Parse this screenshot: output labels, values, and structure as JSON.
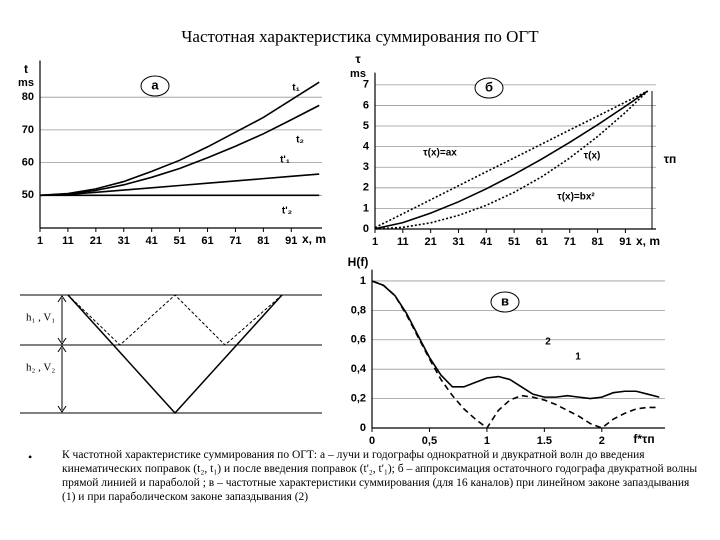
{
  "title": "Частотная характеристика суммирования по ОГТ",
  "chart_data": [
    {
      "type": "line",
      "label": "а",
      "ylabel": "t",
      "yunit": "ms",
      "xlabel": "x, m",
      "x": [
        1,
        11,
        21,
        31,
        41,
        51,
        61,
        71,
        81,
        91,
        101
      ],
      "xlim": [
        1,
        102
      ],
      "xticks": [
        1,
        11,
        21,
        31,
        41,
        51,
        61,
        71,
        81,
        91
      ],
      "ylim": [
        40,
        90
      ],
      "yticks": [
        50,
        60,
        70,
        80
      ],
      "grid": true,
      "series": [
        {
          "name": "t₁",
          "color": "#000000",
          "style": "solid",
          "values": [
            50.0,
            50.55,
            51.97,
            54.2,
            57.3,
            60.7,
            64.8,
            69.3,
            73.8,
            79.2,
            84.6
          ]
        },
        {
          "name": "t₂",
          "color": "#000000",
          "style": "solid",
          "values": [
            50.0,
            50.4,
            51.5,
            53.2,
            55.5,
            58.2,
            61.5,
            65.0,
            68.8,
            73.1,
            77.5
          ]
        },
        {
          "name": "t'₁",
          "color": "#000000",
          "style": "solid",
          "values": [
            50.0,
            50.3,
            50.9,
            51.6,
            52.3,
            53.0,
            53.7,
            54.4,
            55.1,
            55.8,
            56.5
          ]
        },
        {
          "name": "t'₂",
          "color": "#000000",
          "style": "solid",
          "values": [
            50,
            50,
            50,
            50,
            50,
            50,
            50,
            50,
            50,
            50,
            50
          ]
        }
      ]
    },
    {
      "type": "line",
      "label": "б",
      "ylabel": "τ",
      "yunit": "ms",
      "xlabel": "x, m",
      "extra_label": "τп",
      "x": [
        1,
        11,
        21,
        31,
        41,
        51,
        61,
        71,
        81,
        91,
        99
      ],
      "xlim": [
        1,
        102
      ],
      "xticks": [
        1,
        11,
        21,
        31,
        41,
        51,
        61,
        71,
        81,
        91
      ],
      "ylim": [
        0,
        7.4
      ],
      "yticks": [
        0,
        1,
        2,
        3,
        4,
        5,
        6,
        7
      ],
      "grid": true,
      "series": [
        {
          "name": "τ(x)=ax",
          "color": "#000000",
          "style": "dotted",
          "values": [
            0.07,
            0.74,
            1.42,
            2.1,
            2.78,
            3.45,
            4.13,
            4.81,
            5.48,
            6.16,
            6.7
          ]
        },
        {
          "name": "τ(x)",
          "color": "#000000",
          "style": "solid",
          "values": [
            0.01,
            0.31,
            0.77,
            1.32,
            1.95,
            2.65,
            3.4,
            4.21,
            5.06,
            5.96,
            6.7
          ]
        },
        {
          "name": "τ(x)=bx²",
          "color": "#000000",
          "style": "dotted",
          "values": [
            0.0,
            0.08,
            0.3,
            0.66,
            1.15,
            1.78,
            2.54,
            3.45,
            4.49,
            5.66,
            6.7
          ]
        }
      ]
    },
    {
      "type": "line",
      "label": "в",
      "ylabel": "H(f)",
      "xlabel": "f*τп",
      "x": [
        0,
        0.1,
        0.2,
        0.3,
        0.4,
        0.5,
        0.6,
        0.7,
        0.8,
        0.9,
        1.0,
        1.1,
        1.2,
        1.3,
        1.4,
        1.5,
        1.6,
        1.7,
        1.8,
        1.9,
        2.0,
        2.1,
        2.2,
        2.3,
        2.4,
        2.5
      ],
      "xlim": [
        0,
        2.55
      ],
      "xticks": [
        0,
        {
          "value": 0.5,
          "label": "0,5"
        },
        1,
        1.5,
        2
      ],
      "ylim": [
        0,
        1.05
      ],
      "yticks": [
        0,
        {
          "value": 0.2,
          "label": "0,2"
        },
        {
          "value": 0.4,
          "label": "0,4"
        },
        {
          "value": 0.6,
          "label": "0,6"
        },
        {
          "value": 0.8,
          "label": "0,8"
        },
        1
      ],
      "grid": true,
      "series": [
        {
          "name": "1",
          "color": "#000000",
          "style": "dashed",
          "values": [
            1,
            0.97,
            0.9,
            0.77,
            0.62,
            0.47,
            0.33,
            0.22,
            0.13,
            0.06,
            0,
            0.12,
            0.19,
            0.22,
            0.21,
            0.19,
            0.16,
            0.12,
            0.08,
            0.03,
            0,
            0.06,
            0.1,
            0.13,
            0.14,
            0.14
          ]
        },
        {
          "name": "2",
          "color": "#000000",
          "style": "solid",
          "values": [
            1,
            0.97,
            0.9,
            0.78,
            0.63,
            0.48,
            0.36,
            0.28,
            0.28,
            0.31,
            0.34,
            0.35,
            0.33,
            0.28,
            0.23,
            0.21,
            0.21,
            0.22,
            0.21,
            0.2,
            0.21,
            0.24,
            0.25,
            0.25,
            0.23,
            0.21
          ]
        }
      ]
    }
  ],
  "diagram": {
    "labels": [
      "h₁ , V₁",
      "h₂ , V₂"
    ]
  },
  "caption": {
    "bullet": "•",
    "text": "К частотной характеристике суммирования по ОГТ: а – лучи и годографы однократной и двукратной волн до введения кинематических поправок (t₂, t₁) и после введения поправок (t'₂, t'₁); б – аппроксимация остаточного годографа двукратной волны прямой линией и параболой ; в – частотные характеристики суммирования (для 16 каналов) при линейном законе запаздывания (1) и при параболическом законе запаздывания (2)"
  }
}
